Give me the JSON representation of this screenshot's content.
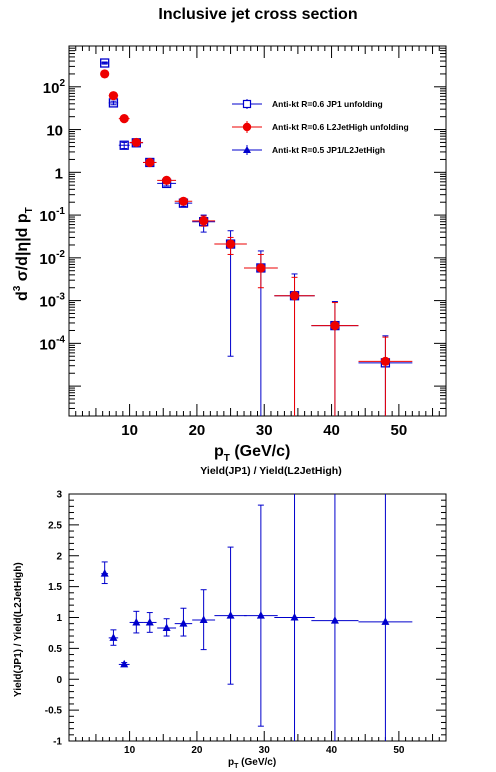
{
  "chart_data": [
    {
      "type": "scatter",
      "title": "Inclusive jet cross section",
      "xlabel_main": "p",
      "xlabel_sub": "T",
      "xlabel_unit": " (GeV/c)",
      "ylabel": "d³σ/d|η|d p_T",
      "xlim": [
        1,
        57
      ],
      "ylim": [
        2e-06,
        900
      ],
      "yscale": "log",
      "xticks": [
        10,
        20,
        30,
        40,
        50
      ],
      "ytick_labels": [
        {
          "base": "10",
          "exp": "2",
          "value": 100
        },
        {
          "base": "10",
          "exp": "",
          "value": 10
        },
        {
          "base": "1",
          "exp": "",
          "value": 1
        },
        {
          "base": "10",
          "exp": "-1",
          "value": 0.1
        },
        {
          "base": "10",
          "exp": "-2",
          "value": 0.01
        },
        {
          "base": "10",
          "exp": "-3",
          "value": 0.001
        },
        {
          "base": "10",
          "exp": "-4",
          "value": 0.0001
        }
      ],
      "legend_position": "top-right",
      "series": [
        {
          "name": "Anti-kt R=0.6 JP1 unfolding",
          "color": "#0000cc",
          "marker": "open-square",
          "points": [
            {
              "x": 6.3,
              "y": 360,
              "xerr": 0.5,
              "ylo": 340,
              "yhi": 380
            },
            {
              "x": 7.6,
              "y": 42,
              "xerr": 0.7,
              "ylo": 38,
              "yhi": 46
            },
            {
              "x": 9.2,
              "y": 4.3,
              "xerr": 0.8,
              "ylo": 3.6,
              "yhi": 5.0
            },
            {
              "x": 11,
              "y": 4.9,
              "xerr": 1.0,
              "ylo": 4.3,
              "yhi": 5.6
            },
            {
              "x": 13,
              "y": 1.7,
              "xerr": 1.0,
              "ylo": 1.5,
              "yhi": 1.9
            },
            {
              "x": 15.5,
              "y": 0.55,
              "xerr": 1.4,
              "ylo": 0.48,
              "yhi": 0.63
            },
            {
              "x": 18,
              "y": 0.19,
              "xerr": 1.3,
              "ylo": 0.16,
              "yhi": 0.22
            },
            {
              "x": 21,
              "y": 0.07,
              "xerr": 1.7,
              "ylo": 0.04,
              "yhi": 0.1
            },
            {
              "x": 25,
              "y": 0.021,
              "xerr": 2.4,
              "ylo": 5e-05,
              "yhi": 0.043
            },
            {
              "x": 29.5,
              "y": 0.0058,
              "xerr": 2.5,
              "ylo": 2e-06,
              "yhi": 0.0145
            },
            {
              "x": 34.5,
              "y": 0.0013,
              "xerr": 3.0,
              "ylo": 2e-06,
              "yhi": 0.0042
            },
            {
              "x": 40.5,
              "y": 0.00026,
              "xerr": 3.5,
              "ylo": 2e-06,
              "yhi": 0.00095
            },
            {
              "x": 48,
              "y": 3.5e-05,
              "xerr": 4.0,
              "ylo": 2e-06,
              "yhi": 0.00015
            }
          ]
        },
        {
          "name": "Anti-kt R=0.6 L2JetHigh unfolding",
          "color": "#ee0000",
          "marker": "filled-circle",
          "points": [
            {
              "x": 6.3,
              "y": 200,
              "xerr": 0.5,
              "ylo": 180,
              "yhi": 220
            },
            {
              "x": 7.6,
              "y": 62,
              "xerr": 0.7,
              "ylo": 55,
              "yhi": 70
            },
            {
              "x": 9.2,
              "y": 18,
              "xerr": 0.8,
              "ylo": 16,
              "yhi": 20
            },
            {
              "x": 11,
              "y": 5.0,
              "xerr": 1.0,
              "ylo": 4.5,
              "yhi": 5.6
            },
            {
              "x": 13,
              "y": 1.7,
              "xerr": 1.0,
              "ylo": 1.5,
              "yhi": 1.9
            },
            {
              "x": 15.5,
              "y": 0.65,
              "xerr": 1.4,
              "ylo": 0.58,
              "yhi": 0.72
            },
            {
              "x": 18,
              "y": 0.21,
              "xerr": 1.3,
              "ylo": 0.19,
              "yhi": 0.23
            },
            {
              "x": 21,
              "y": 0.073,
              "xerr": 1.7,
              "ylo": 0.055,
              "yhi": 0.095
            },
            {
              "x": 25,
              "y": 0.021,
              "xerr": 2.4,
              "ylo": 0.012,
              "yhi": 0.03
            },
            {
              "x": 29.5,
              "y": 0.0058,
              "xerr": 2.5,
              "ylo": 0.002,
              "yhi": 0.012
            },
            {
              "x": 34.5,
              "y": 0.0013,
              "xerr": 3.0,
              "ylo": 2e-06,
              "yhi": 0.0035
            },
            {
              "x": 40.5,
              "y": 0.00026,
              "xerr": 3.5,
              "ylo": 2e-06,
              "yhi": 0.0009
            },
            {
              "x": 48,
              "y": 3.8e-05,
              "xerr": 4.0,
              "ylo": 2e-06,
              "yhi": 0.00014
            }
          ]
        },
        {
          "name": "Anti-kt R=0.5 JP1/L2JetHigh",
          "color": "#0000cc",
          "marker": "filled-triangle",
          "points": []
        }
      ]
    },
    {
      "type": "scatter",
      "title": "Yield(JP1) / Yield(L2JetHigh)",
      "xlabel_main": "p",
      "xlabel_sub": "T",
      "xlabel_unit": " (GeV/c)",
      "ylabel": "Yield(JP1) / Yield(L2JetHigh)",
      "xlim": [
        1,
        57
      ],
      "ylim": [
        -1,
        3
      ],
      "xticks": [
        10,
        20,
        30,
        40,
        50
      ],
      "yticks": [
        -1,
        -0.5,
        0,
        0.5,
        1,
        1.5,
        2,
        2.5,
        3
      ],
      "ytick_labels": [
        "-1",
        "-0.5",
        "0",
        "0.5",
        "1",
        "1.5",
        "2",
        "2.5",
        "3"
      ],
      "series": [
        {
          "name": "Anti-kt R=0.5 JP1/L2JetHigh",
          "color": "#0000cc",
          "marker": "filled-triangle",
          "points": [
            {
              "x": 6.3,
              "y": 1.71,
              "xerr": 0.5,
              "ylo": 1.55,
              "yhi": 1.9
            },
            {
              "x": 7.6,
              "y": 0.67,
              "xerr": 0.7,
              "ylo": 0.55,
              "yhi": 0.8
            },
            {
              "x": 9.2,
              "y": 0.24,
              "xerr": 0.8,
              "ylo": 0.22,
              "yhi": 0.27
            },
            {
              "x": 11,
              "y": 0.92,
              "xerr": 1.0,
              "ylo": 0.75,
              "yhi": 1.1
            },
            {
              "x": 13,
              "y": 0.92,
              "xerr": 1.0,
              "ylo": 0.76,
              "yhi": 1.08
            },
            {
              "x": 15.5,
              "y": 0.83,
              "xerr": 1.4,
              "ylo": 0.7,
              "yhi": 0.98
            },
            {
              "x": 18,
              "y": 0.9,
              "xerr": 1.3,
              "ylo": 0.7,
              "yhi": 1.15
            },
            {
              "x": 21,
              "y": 0.96,
              "xerr": 1.7,
              "ylo": 0.48,
              "yhi": 1.45
            },
            {
              "x": 25,
              "y": 1.03,
              "xerr": 2.4,
              "ylo": -0.08,
              "yhi": 2.14
            },
            {
              "x": 29.5,
              "y": 1.03,
              "xerr": 2.5,
              "ylo": -0.76,
              "yhi": 2.82
            },
            {
              "x": 34.5,
              "y": 1.0,
              "xerr": 3.0,
              "ylo": -1,
              "yhi": 3
            },
            {
              "x": 40.5,
              "y": 0.95,
              "xerr": 3.5,
              "ylo": -1,
              "yhi": 3
            },
            {
              "x": 48,
              "y": 0.93,
              "xerr": 4.0,
              "ylo": -1,
              "yhi": 3
            }
          ]
        }
      ]
    }
  ]
}
